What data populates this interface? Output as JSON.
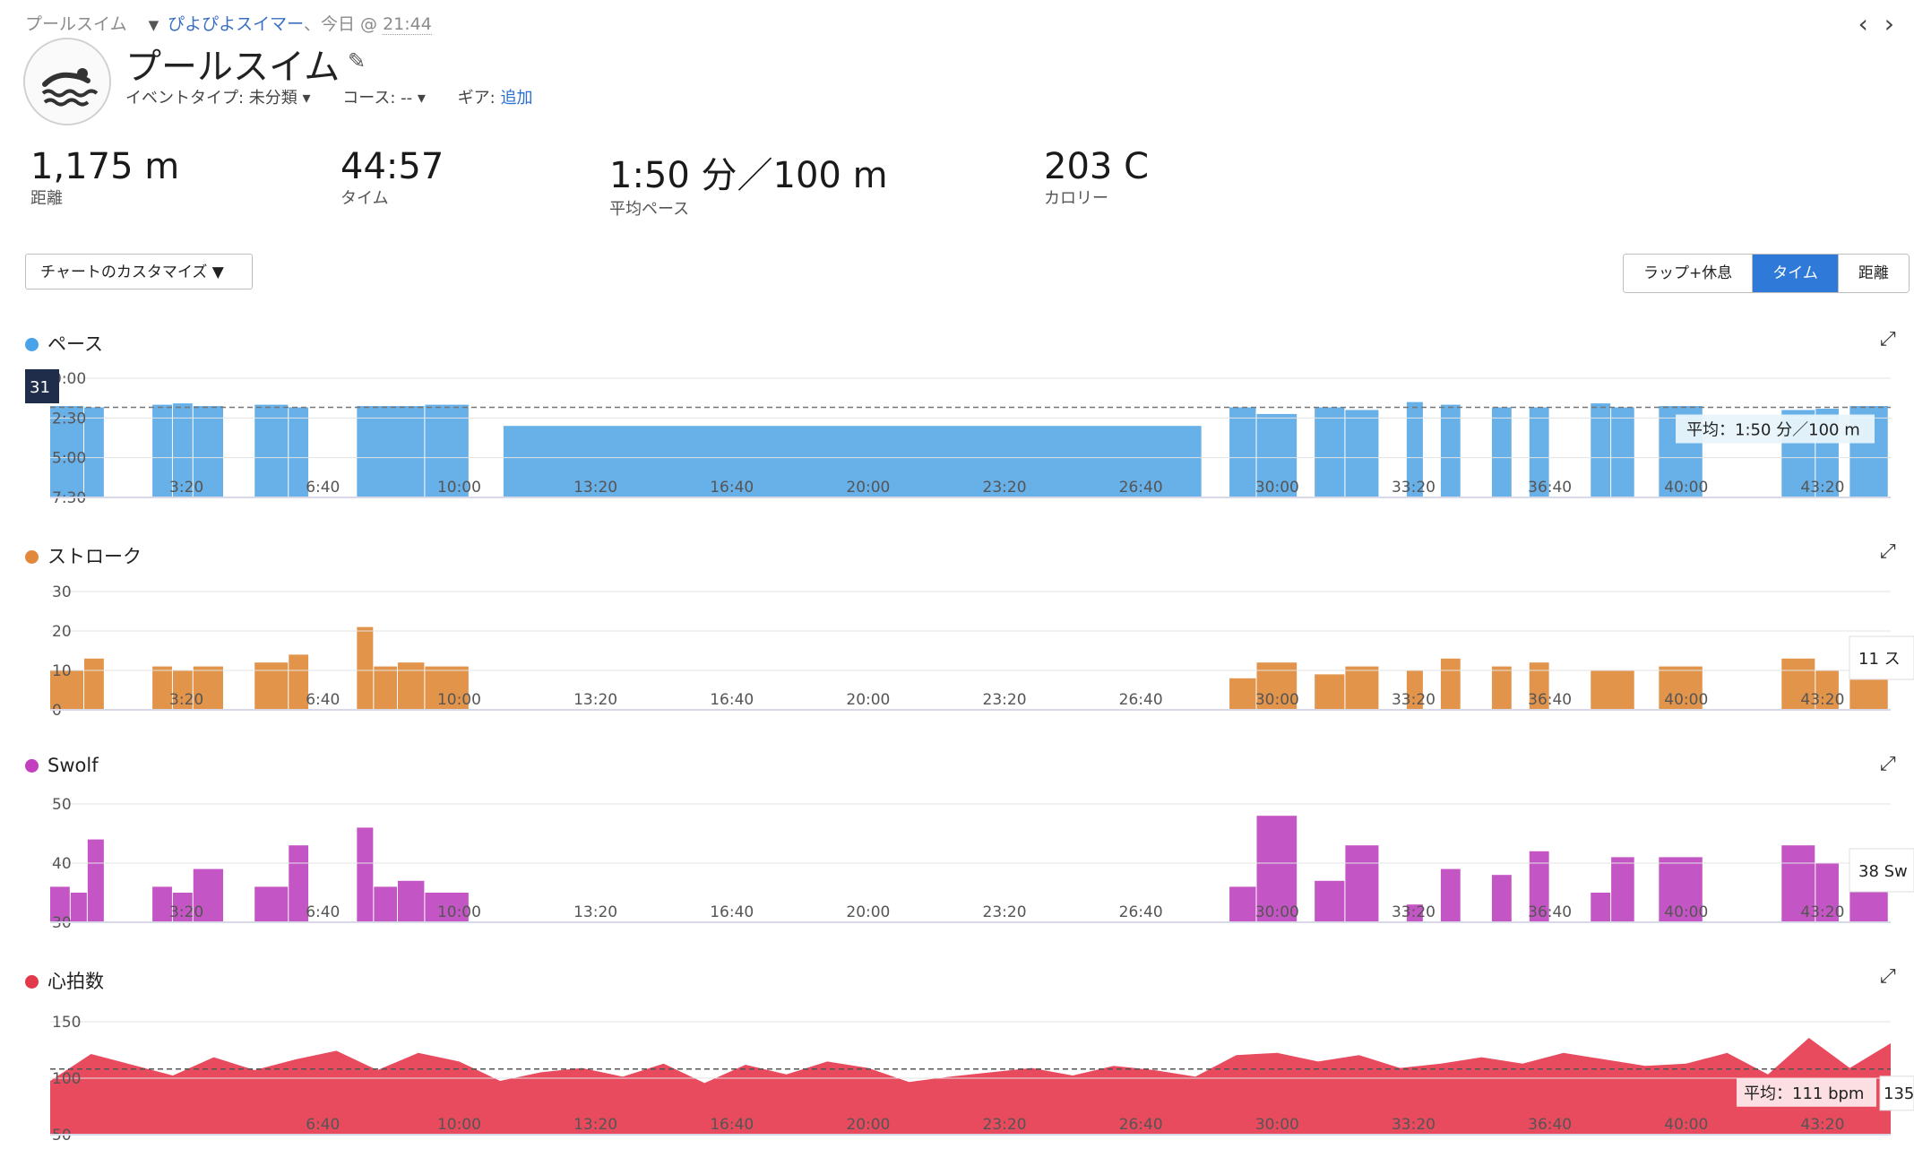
{
  "breadcrumb": {
    "activity_type": "プールスイム",
    "user": "ぴよぴよスイマー",
    "separator": "、今日 @ ",
    "time": "21:44"
  },
  "nav": {
    "prev": "‹",
    "next": "›"
  },
  "header": {
    "title": "プールスイム",
    "event_type_label": "イベントタイプ: 未分類 ▾",
    "course_label": "コース: -- ▾",
    "gear_label": "ギア:",
    "gear_link": "追加"
  },
  "stats": [
    {
      "value": "1,175 m",
      "label": "距離"
    },
    {
      "value": "44:57",
      "label": "タイム"
    },
    {
      "value": "1:50 分／100 m",
      "label": "平均ペース"
    },
    {
      "value": "203 C",
      "label": "カロリー"
    }
  ],
  "controls": {
    "customize": "チャートのカスタマイズ ▼",
    "segments": [
      "ラップ+休息",
      "タイム",
      "距離"
    ],
    "active_segment": "タイム"
  },
  "icons": [
    "swim-icon",
    "pencil-icon",
    "expand-icon",
    "chevron-left-icon",
    "chevron-right-icon"
  ],
  "colors": {
    "pace": "#67b0e8",
    "stroke": "#e2944b",
    "swolf": "#c455c4",
    "hr": "#e84a5e",
    "accent": "#2f7ad8"
  },
  "charts": {
    "pace": {
      "title": "ペース",
      "y_ticks": [
        "0:00",
        "2:30",
        "5:00",
        "7:30"
      ],
      "avg_label": "平均：1:50 分／100 m",
      "cursor_label": "31"
    },
    "stroke": {
      "title": "ストローク",
      "y_ticks": [
        "30",
        "20",
        "10",
        "0"
      ],
      "tooltip": "11 ス"
    },
    "swolf": {
      "title": "Swolf",
      "y_ticks": [
        "50",
        "40",
        "30"
      ],
      "tooltip": "38 Sw"
    },
    "hr": {
      "title": "心拍数",
      "y_ticks": [
        "150",
        "100",
        "50"
      ],
      "avg_label": "平均：111 bpm",
      "tooltip": "135"
    }
  },
  "chart_data": [
    {
      "type": "bar",
      "name": "ペース",
      "x_unit": "time",
      "x_ticks": [
        "3:20",
        "6:40",
        "10:00",
        "13:20",
        "16:40",
        "20:00",
        "23:20",
        "26:40",
        "30:00",
        "33:20",
        "36:40",
        "40:00",
        "43:20"
      ],
      "ylim_sec_per_100m": [
        450,
        0
      ],
      "average": "1:50",
      "intervals": [
        {
          "start": "0:00",
          "end": "0:50",
          "value": "1:45"
        },
        {
          "start": "0:50",
          "end": "1:20",
          "value": "1:50"
        },
        {
          "start": "2:30",
          "end": "3:00",
          "value": "1:40"
        },
        {
          "start": "3:00",
          "end": "3:30",
          "value": "1:35"
        },
        {
          "start": "3:30",
          "end": "4:15",
          "value": "1:45"
        },
        {
          "start": "5:00",
          "end": "5:50",
          "value": "1:40"
        },
        {
          "start": "5:50",
          "end": "6:20",
          "value": "1:50"
        },
        {
          "start": "7:30",
          "end": "9:10",
          "value": "1:45"
        },
        {
          "start": "9:10",
          "end": "10:15",
          "value": "1:40"
        },
        {
          "start": "11:05",
          "end": "28:10",
          "value": "3:00"
        },
        {
          "start": "28:50",
          "end": "29:30",
          "value": "1:50"
        },
        {
          "start": "29:30",
          "end": "30:30",
          "value": "2:15"
        },
        {
          "start": "30:55",
          "end": "31:40",
          "value": "1:50"
        },
        {
          "start": "31:40",
          "end": "32:30",
          "value": "2:00"
        },
        {
          "start": "33:10",
          "end": "33:35",
          "value": "1:30"
        },
        {
          "start": "34:00",
          "end": "34:30",
          "value": "1:40"
        },
        {
          "start": "35:15",
          "end": "35:45",
          "value": "1:50"
        },
        {
          "start": "36:10",
          "end": "36:40",
          "value": "1:50"
        },
        {
          "start": "37:40",
          "end": "38:10",
          "value": "1:35"
        },
        {
          "start": "38:10",
          "end": "38:45",
          "value": "1:50"
        },
        {
          "start": "39:20",
          "end": "40:25",
          "value": "1:45"
        },
        {
          "start": "42:20",
          "end": "43:10",
          "value": "2:00"
        },
        {
          "start": "43:10",
          "end": "43:45",
          "value": "1:55"
        },
        {
          "start": "44:00",
          "end": "44:57",
          "value": "1:45"
        }
      ]
    },
    {
      "type": "bar",
      "name": "ストローク",
      "ylim": [
        0,
        30
      ],
      "intervals": [
        {
          "start": "0:00",
          "end": "0:50",
          "value": 10
        },
        {
          "start": "0:50",
          "end": "1:20",
          "value": 13
        },
        {
          "start": "2:30",
          "end": "3:00",
          "value": 11
        },
        {
          "start": "3:00",
          "end": "3:30",
          "value": 10
        },
        {
          "start": "3:30",
          "end": "4:15",
          "value": 11
        },
        {
          "start": "5:00",
          "end": "5:50",
          "value": 12
        },
        {
          "start": "5:50",
          "end": "6:20",
          "value": 14
        },
        {
          "start": "7:30",
          "end": "7:55",
          "value": 21
        },
        {
          "start": "7:55",
          "end": "8:30",
          "value": 11
        },
        {
          "start": "8:30",
          "end": "9:10",
          "value": 12
        },
        {
          "start": "9:10",
          "end": "10:15",
          "value": 11
        },
        {
          "start": "28:50",
          "end": "29:30",
          "value": 8
        },
        {
          "start": "29:30",
          "end": "30:30",
          "value": 12
        },
        {
          "start": "30:55",
          "end": "31:40",
          "value": 9
        },
        {
          "start": "31:40",
          "end": "32:30",
          "value": 11
        },
        {
          "start": "33:10",
          "end": "33:35",
          "value": 10
        },
        {
          "start": "34:00",
          "end": "34:30",
          "value": 13
        },
        {
          "start": "35:15",
          "end": "35:45",
          "value": 11
        },
        {
          "start": "36:10",
          "end": "36:40",
          "value": 12
        },
        {
          "start": "37:40",
          "end": "38:45",
          "value": 10
        },
        {
          "start": "39:20",
          "end": "40:25",
          "value": 11
        },
        {
          "start": "42:20",
          "end": "43:10",
          "value": 13
        },
        {
          "start": "43:10",
          "end": "43:45",
          "value": 10
        },
        {
          "start": "44:00",
          "end": "44:57",
          "value": 11
        }
      ]
    },
    {
      "type": "bar",
      "name": "Swolf",
      "ylim": [
        30,
        50
      ],
      "intervals": [
        {
          "start": "0:00",
          "end": "0:30",
          "value": 36
        },
        {
          "start": "0:30",
          "end": "0:55",
          "value": 35
        },
        {
          "start": "0:55",
          "end": "1:20",
          "value": 44
        },
        {
          "start": "2:30",
          "end": "3:00",
          "value": 36
        },
        {
          "start": "3:00",
          "end": "3:30",
          "value": 35
        },
        {
          "start": "3:30",
          "end": "4:15",
          "value": 39
        },
        {
          "start": "5:00",
          "end": "5:50",
          "value": 36
        },
        {
          "start": "5:50",
          "end": "6:20",
          "value": 43
        },
        {
          "start": "7:30",
          "end": "7:55",
          "value": 46
        },
        {
          "start": "7:55",
          "end": "8:30",
          "value": 36
        },
        {
          "start": "8:30",
          "end": "9:10",
          "value": 37
        },
        {
          "start": "9:10",
          "end": "10:15",
          "value": 35
        },
        {
          "start": "28:50",
          "end": "29:30",
          "value": 36
        },
        {
          "start": "29:30",
          "end": "30:30",
          "value": 48
        },
        {
          "start": "30:55",
          "end": "31:40",
          "value": 37
        },
        {
          "start": "31:40",
          "end": "32:30",
          "value": 43
        },
        {
          "start": "33:10",
          "end": "33:35",
          "value": 33
        },
        {
          "start": "34:00",
          "end": "34:30",
          "value": 39
        },
        {
          "start": "35:15",
          "end": "35:45",
          "value": 38
        },
        {
          "start": "36:10",
          "end": "36:40",
          "value": 42
        },
        {
          "start": "37:40",
          "end": "38:10",
          "value": 35
        },
        {
          "start": "38:10",
          "end": "38:45",
          "value": 41
        },
        {
          "start": "39:20",
          "end": "40:25",
          "value": 41
        },
        {
          "start": "42:20",
          "end": "43:10",
          "value": 43
        },
        {
          "start": "43:10",
          "end": "43:45",
          "value": 40
        },
        {
          "start": "44:00",
          "end": "44:57",
          "value": 38
        }
      ]
    },
    {
      "type": "area",
      "name": "心拍数",
      "ylim": [
        50,
        160
      ],
      "average": 111,
      "x_minutes": [
        0,
        1,
        2,
        3,
        4,
        5,
        6,
        7,
        8,
        9,
        10,
        11,
        12,
        13,
        14,
        15,
        16,
        17,
        18,
        19,
        20,
        21,
        22,
        23,
        24,
        25,
        26,
        27,
        28,
        29,
        30,
        31,
        32,
        33,
        34,
        35,
        36,
        37,
        38,
        39,
        40,
        41,
        42,
        43,
        44,
        45
      ],
      "values": [
        100,
        125,
        115,
        105,
        122,
        110,
        120,
        128,
        110,
        126,
        118,
        100,
        108,
        112,
        104,
        116,
        98,
        115,
        106,
        118,
        112,
        99,
        104,
        108,
        112,
        105,
        114,
        110,
        104,
        124,
        126,
        118,
        124,
        112,
        116,
        122,
        116,
        126,
        120,
        114,
        116,
        126,
        106,
        140,
        112,
        135
      ]
    }
  ]
}
